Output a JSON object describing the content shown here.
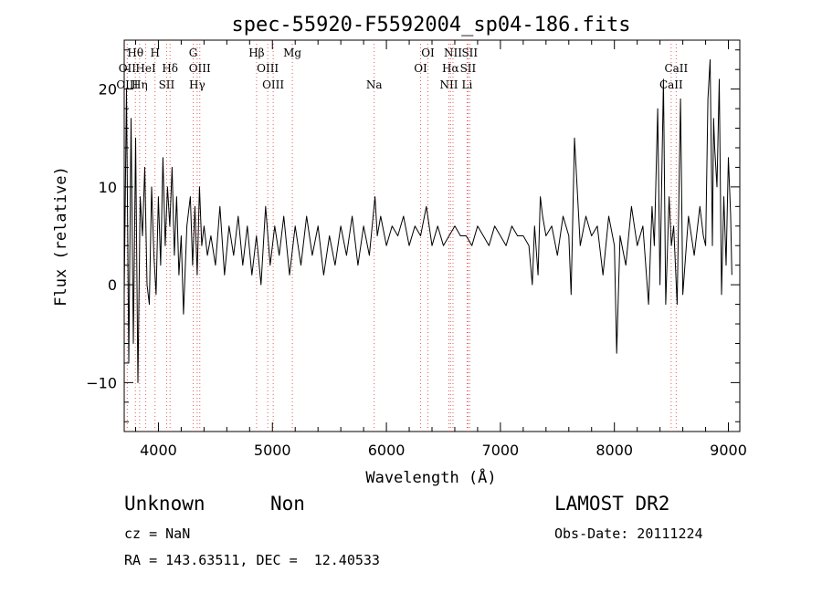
{
  "chart_data": {
    "type": "line",
    "title": "spec-55920-F5592004_sp04-186.fits",
    "xlabel": "Wavelength (Å)",
    "ylabel": "Flux (relative)",
    "xlim": [
      3700,
      9100
    ],
    "ylim": [
      -15,
      25
    ],
    "x_ticks": [
      4000,
      5000,
      6000,
      7000,
      8000,
      9000
    ],
    "y_ticks": [
      -10,
      0,
      10,
      20
    ],
    "grid": false,
    "line_markers": [
      {
        "name": "Hθ",
        "wavelength": 3798,
        "row": 0
      },
      {
        "name": "H",
        "wavelength": 3970,
        "row": 0
      },
      {
        "name": "G",
        "wavelength": 4305,
        "row": 0
      },
      {
        "name": "Hβ",
        "wavelength": 4861,
        "row": 0
      },
      {
        "name": "Mg",
        "wavelength": 5175,
        "row": 0
      },
      {
        "name": "OI",
        "wavelength": 6364,
        "row": 0
      },
      {
        "name": "NII",
        "wavelength": 6584,
        "row": 0
      },
      {
        "name": "SII",
        "wavelength": 6731,
        "row": 0
      },
      {
        "name": "OII",
        "wavelength": 3727,
        "row": 1
      },
      {
        "name": "HeI",
        "wavelength": 3889,
        "row": 1
      },
      {
        "name": "Hδ",
        "wavelength": 4102,
        "row": 1
      },
      {
        "name": "OIII",
        "wavelength": 4363,
        "row": 1
      },
      {
        "name": "OIII",
        "wavelength": 4959,
        "row": 1
      },
      {
        "name": "OI",
        "wavelength": 6300,
        "row": 1
      },
      {
        "name": "Hα",
        "wavelength": 6563,
        "row": 1
      },
      {
        "name": "SII",
        "wavelength": 6716,
        "row": 1
      },
      {
        "name": "CaII",
        "wavelength": 8542,
        "row": 1
      },
      {
        "name": "OIII",
        "wavelength": 3727,
        "row": 2
      },
      {
        "name": "Hη",
        "wavelength": 3835,
        "row": 2
      },
      {
        "name": "SII",
        "wavelength": 4072,
        "row": 2
      },
      {
        "name": "Hγ",
        "wavelength": 4340,
        "row": 2
      },
      {
        "name": "OIII",
        "wavelength": 5007,
        "row": 2
      },
      {
        "name": "Na",
        "wavelength": 5893,
        "row": 2
      },
      {
        "name": "NII",
        "wavelength": 6548,
        "row": 2
      },
      {
        "name": "Li",
        "wavelength": 6708,
        "row": 2
      },
      {
        "name": "CaII",
        "wavelength": 8498,
        "row": 2
      }
    ],
    "marker_lines": [
      3727,
      3798,
      3835,
      3889,
      3970,
      4072,
      4102,
      4305,
      4340,
      4363,
      4861,
      4959,
      5007,
      5175,
      5893,
      6300,
      6364,
      6548,
      6563,
      6584,
      6708,
      6716,
      6731,
      8498,
      8542
    ],
    "series": [
      {
        "x": [
          3700,
          3720,
          3740,
          3760,
          3780,
          3800,
          3820,
          3840,
          3860,
          3880,
          3900,
          3920,
          3940,
          3960,
          3980,
          4000,
          4020,
          4040,
          4060,
          4080,
          4100,
          4120,
          4140,
          4160,
          4180,
          4200,
          4220,
          4250,
          4280,
          4300,
          4320,
          4340,
          4360,
          4380,
          4400,
          4430,
          4460,
          4500,
          4540,
          4580,
          4620,
          4660,
          4700,
          4740,
          4780,
          4820,
          4860,
          4900,
          4940,
          4980,
          5020,
          5060,
          5100,
          5150,
          5200,
          5250,
          5300,
          5350,
          5400,
          5450,
          5500,
          5550,
          5600,
          5650,
          5700,
          5750,
          5800,
          5850,
          5900,
          5920,
          5950,
          6000,
          6050,
          6100,
          6150,
          6200,
          6250,
          6300,
          6350,
          6400,
          6450,
          6500,
          6550,
          6600,
          6650,
          6700,
          6750,
          6800,
          6850,
          6900,
          6950,
          7000,
          7050,
          7100,
          7150,
          7200,
          7250,
          7280,
          7300,
          7330,
          7350,
          7370,
          7400,
          7450,
          7500,
          7550,
          7600,
          7620,
          7650,
          7700,
          7750,
          7800,
          7850,
          7900,
          7950,
          8000,
          8020,
          8050,
          8100,
          8150,
          8200,
          8250,
          8300,
          8330,
          8350,
          8380,
          8400,
          8430,
          8450,
          8480,
          8500,
          8520,
          8550,
          8580,
          8600,
          8650,
          8700,
          8750,
          8780,
          8800,
          8820,
          8840,
          8860,
          8870,
          8880,
          8900,
          8920,
          8940,
          8960,
          8980,
          9000,
          9020,
          9030
        ],
        "y": [
          -1,
          20,
          -8,
          17,
          -6,
          15,
          -10,
          9,
          5,
          12,
          0,
          -2,
          10,
          3,
          -1,
          9,
          2,
          13,
          4,
          10,
          6,
          12,
          3,
          9,
          1,
          5,
          -3,
          6,
          9,
          2,
          8,
          1,
          10,
          4,
          6,
          3,
          5,
          2,
          8,
          1,
          6,
          3,
          7,
          2,
          6,
          1,
          5,
          0,
          8,
          2,
          6,
          3,
          7,
          1,
          6,
          2,
          7,
          3,
          6,
          1,
          5,
          2,
          6,
          3,
          7,
          2,
          6,
          3,
          9,
          5,
          7,
          4,
          6,
          5,
          7,
          4,
          6,
          5,
          8,
          4,
          6,
          4,
          5,
          6,
          5,
          5,
          4,
          6,
          5,
          4,
          6,
          5,
          4,
          6,
          5,
          5,
          4,
          0,
          6,
          1,
          9,
          7,
          5,
          6,
          3,
          7,
          5,
          -1,
          15,
          4,
          7,
          5,
          6,
          1,
          7,
          4,
          -7,
          5,
          2,
          8,
          4,
          6,
          -2,
          8,
          4,
          18,
          0,
          21,
          -2,
          9,
          4,
          6,
          -2,
          19,
          -1,
          7,
          3,
          8,
          5,
          4,
          19,
          23,
          4,
          17,
          14,
          10,
          21,
          -1,
          9,
          2,
          13,
          7,
          1
        ]
      }
    ]
  },
  "footer": {
    "class_label": "Unknown",
    "subclass_label": "Non",
    "survey": "LAMOST DR2",
    "cz": "cz = NaN",
    "obs_date": "Obs-Date: 20111224",
    "coords": "RA = 143.63511, DEC =  12.40533"
  }
}
